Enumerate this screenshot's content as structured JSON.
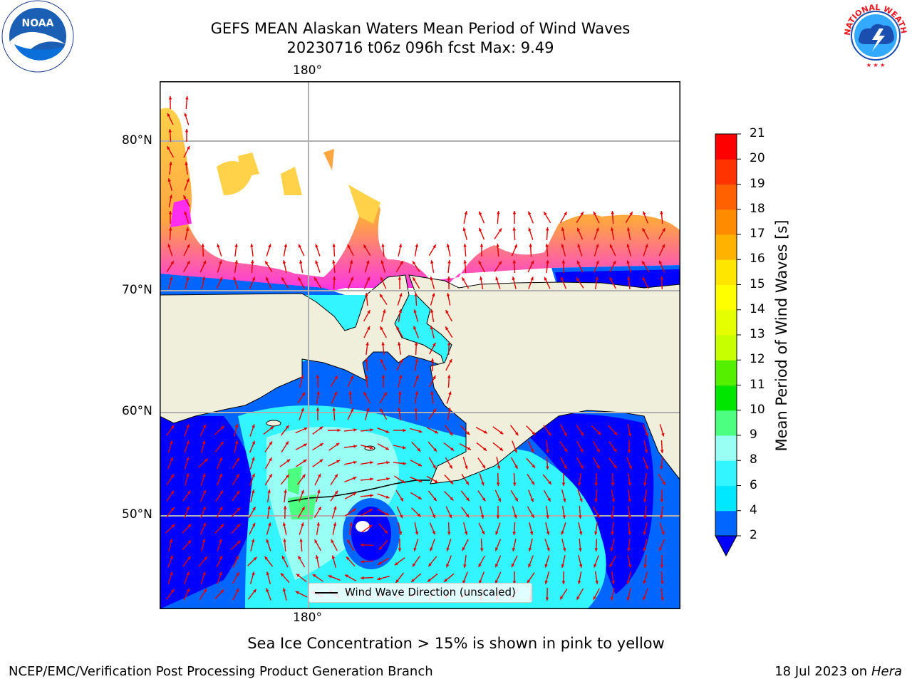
{
  "title_line1": "GEFS MEAN Alaskan Waters Mean Period of Wind Waves",
  "title_line2": "20230716 t06z 096h fcst   Max: 9.49",
  "logos": {
    "left": {
      "icon": "noaa-logo-icon",
      "text": "NOAA"
    },
    "right": {
      "icon": "nws-logo-icon",
      "ring_text": "NATIONAL WEATHER SERVICE"
    }
  },
  "map": {
    "lon_label_top": "180°",
    "lon_label_bottom": "180°",
    "lat_labels": [
      "80°N",
      "70°N",
      "60°N",
      "50°N"
    ],
    "legend_label": "Wind Wave Direction (unscaled)",
    "colors": {
      "land": "#efefdc",
      "open_ice_gap": "#ffffff",
      "ice_low": "#ff2df0",
      "ice_mid": "#ffa640",
      "ice_high": "#ffd24a",
      "arrow": "#e00000"
    }
  },
  "colorbar": {
    "label": "Mean Period of Wind Waves [s]",
    "ticks": [
      "2",
      "4",
      "6",
      "8",
      "9",
      "10",
      "11",
      "12",
      "13",
      "14",
      "15",
      "16",
      "17",
      "18",
      "19",
      "20",
      "21"
    ],
    "colors": [
      "#0066ff",
      "#00e8ff",
      "#33f5ff",
      "#99fff5",
      "#4dff80",
      "#00e600",
      "#55f000",
      "#c7ff00",
      "#e6ff00",
      "#ffff00",
      "#ffe600",
      "#ffb300",
      "#ff8c00",
      "#ff6000",
      "#ff3300",
      "#ff0000"
    ],
    "extend_color": "#0000ff"
  },
  "footer": {
    "note": "Sea Ice Concentration > 15% is shown in pink to yellow",
    "left": "NCEP/EMC/Verification Post Processing Product Generation Branch",
    "right_date": "18 Jul 2023 on ",
    "right_host": "Hera"
  }
}
